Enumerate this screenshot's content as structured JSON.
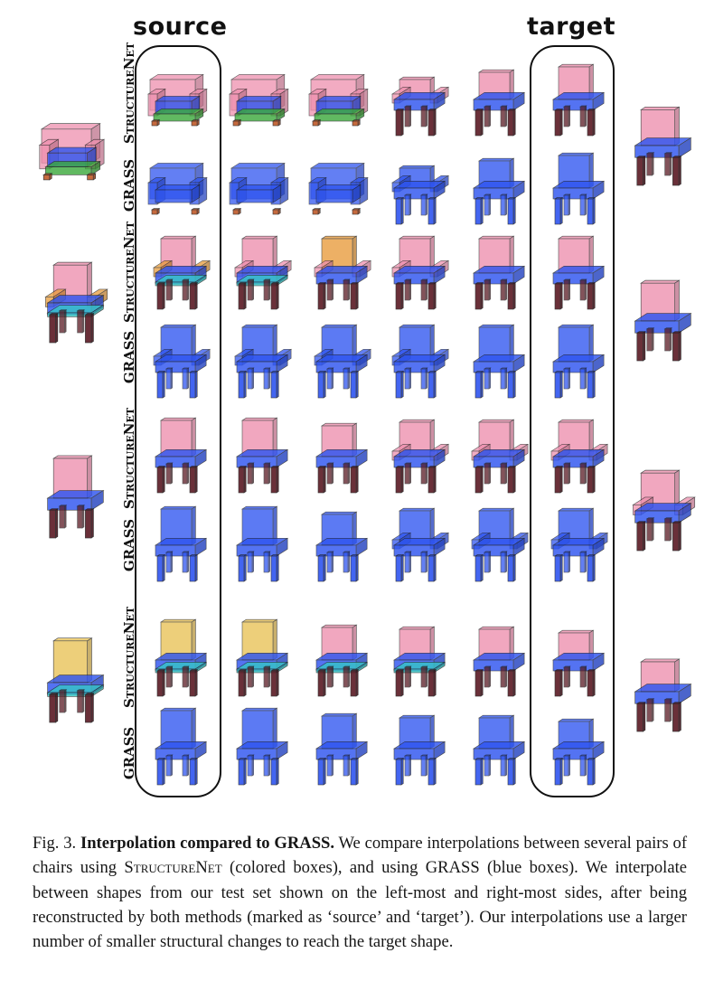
{
  "figure": {
    "header_source": "source",
    "header_target": "target",
    "row_labels": [
      "StructureNet",
      "GRASS",
      "StructureNet",
      "GRASS",
      "StructureNet",
      "GRASS",
      "StructureNet",
      "GRASS"
    ]
  },
  "caption": {
    "label": "Fig. 3.",
    "title": "Interpolation compared to GRASS.",
    "text_1": " We compare interpolations between several pairs of chairs using ",
    "method": "StructureNet",
    "text_2": " (colored boxes), and using GRASS (blue boxes). We interpolate between shapes from our test set shown on the left-most and right-most sides, after being reconstructed by both methods (marked as ‘source’ and ‘target’). Our interpolations use a larger number of smaller structural changes to reach the target shape."
  },
  "colors": {
    "blue_box": "#2f55f0",
    "pink_box": "#ee8fae",
    "orange_box": "#e89b3a",
    "yellow_box": "#e8c256",
    "teal_box": "#36c6c6",
    "green_box": "#3aa83a",
    "leg_dark": "#5a1a24",
    "bracket": "#111111"
  }
}
